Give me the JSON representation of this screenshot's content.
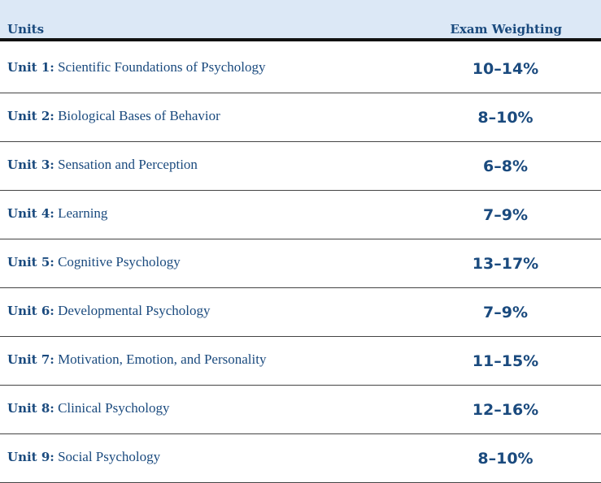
{
  "header": {
    "units_label": "Units",
    "weighting_label": "Exam Weighting"
  },
  "colors": {
    "header_bg": "#dce8f6",
    "text": "#1a4a7e",
    "rule": "#111111"
  },
  "rows": [
    {
      "unit": "Unit 1:",
      "title": "Scientific Foundations of Psychology",
      "weight": "10–14%"
    },
    {
      "unit": "Unit 2:",
      "title": "Biological Bases of Behavior",
      "weight": "8–10%"
    },
    {
      "unit": "Unit 3:",
      "title": "Sensation and Perception",
      "weight": "6–8%"
    },
    {
      "unit": "Unit 4:",
      "title": "Learning",
      "weight": "7–9%"
    },
    {
      "unit": "Unit 5:",
      "title": "Cognitive Psychology",
      "weight": "13–17%"
    },
    {
      "unit": "Unit 6:",
      "title": "Developmental Psychology",
      "weight": "7–9%"
    },
    {
      "unit": "Unit 7:",
      "title": "Motivation, Emotion, and Personality",
      "weight": "11–15%"
    },
    {
      "unit": "Unit 8:",
      "title": "Clinical Psychology",
      "weight": "12–16%"
    },
    {
      "unit": "Unit 9:",
      "title": "Social Psychology",
      "weight": "8–10%"
    }
  ]
}
